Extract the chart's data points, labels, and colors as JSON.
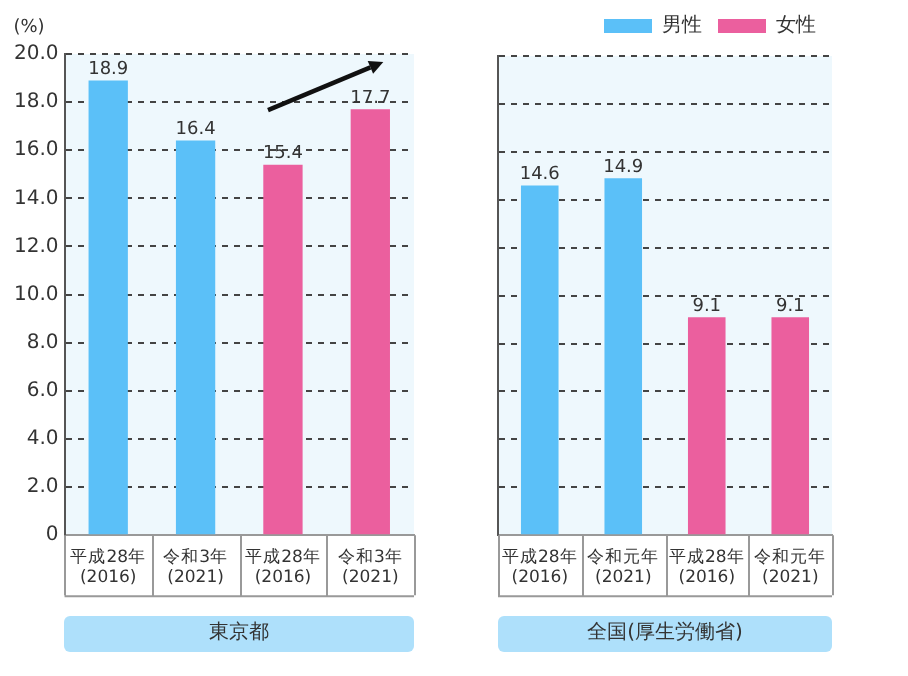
{
  "chart_data": [
    {
      "type": "bar",
      "categories": [
        "平成28年\n(2016)",
        "令和3年\n(2021)",
        "平成28年\n(2016)",
        "令和3年\n(2021)"
      ],
      "xlabel": "東京都",
      "ylabel": "(%)",
      "series": [
        {
          "color": "#5bc0f8",
          "values": [
            18.9,
            16.4,
            null,
            null
          ]
        },
        {
          "color": "#eb5f9e",
          "values": [
            null,
            null,
            15.4,
            17.7
          ]
        }
      ],
      "ylim": [
        0,
        20
      ],
      "yticks": [
        0,
        {
          "value": 2,
          "label": "2.0"
        },
        {
          "value": 4,
          "label": "4.0"
        },
        {
          "value": 6,
          "label": "6.0"
        },
        {
          "value": 8,
          "label": "8.0"
        },
        {
          "value": 10,
          "label": "10.0"
        },
        {
          "value": 12,
          "label": "12.0"
        },
        {
          "value": 14,
          "label": "14.0"
        },
        {
          "value": 16,
          "label": "16.0"
        },
        {
          "value": 18,
          "label": "18.0"
        },
        {
          "value": 20,
          "label": "20.0"
        }
      ],
      "grid": "y",
      "legend": false,
      "data_labels": true
    },
    {
      "type": "bar",
      "categories": [
        "平成28年\n(2016)",
        "令和元年\n(2021)",
        "平成28年\n(2016)",
        "令和元年\n(2021)"
      ],
      "xlabel": "全国(厚生労働省)",
      "series": [
        {
          "name": "男性",
          "color": "#5bc0f8",
          "values": [
            14.6,
            14.9,
            null,
            null
          ]
        },
        {
          "name": "女性",
          "color": "#eb5f9e",
          "values": [
            null,
            null,
            9.1,
            9.1
          ]
        }
      ],
      "ylim": [
        0,
        20
      ],
      "yticks": [
        0,
        2,
        4,
        6,
        8,
        10,
        12,
        14,
        16,
        18,
        20
      ],
      "tick_labels": "x",
      "grid": "y",
      "legend": "top right",
      "data_labels": true
    }
  ]
}
